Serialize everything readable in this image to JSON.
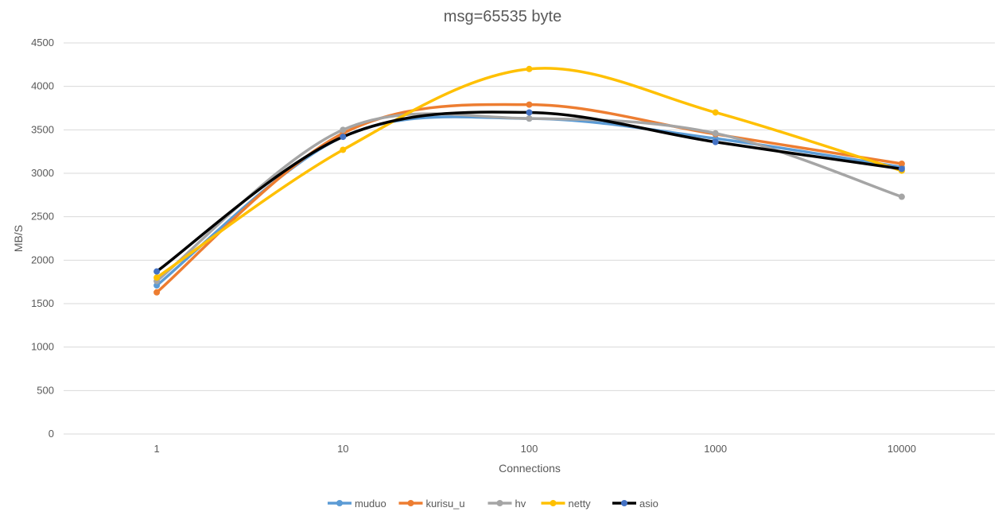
{
  "chart_data": {
    "type": "line",
    "title": "msg=65535 byte",
    "xlabel": "Connections",
    "ylabel": "MB/S",
    "categories": [
      "1",
      "10",
      "100",
      "1000",
      "10000"
    ],
    "ylim": [
      0,
      4500
    ],
    "yticks": [
      0,
      500,
      1000,
      1500,
      2000,
      2500,
      3000,
      3500,
      4000,
      4500
    ],
    "grid": true,
    "legend_position": "bottom",
    "series": [
      {
        "name": "muduo",
        "color": "#5B9BD5",
        "values": [
          1710,
          3420,
          3630,
          3400,
          3070
        ]
      },
      {
        "name": "kurisu_u",
        "color": "#ED7D31",
        "values": [
          1630,
          3460,
          3790,
          3450,
          3110
        ]
      },
      {
        "name": "hv",
        "color": "#A5A5A5",
        "values": [
          1760,
          3500,
          3630,
          3460,
          2730
        ]
      },
      {
        "name": "netty",
        "color": "#FFC000",
        "values": [
          1800,
          3270,
          4200,
          3700,
          3030
        ]
      },
      {
        "name": "asio",
        "color": "#000000",
        "marker_color": "#4472C4",
        "values": [
          1870,
          3420,
          3700,
          3360,
          3050
        ]
      }
    ],
    "colors": {
      "grid": "#D9D9D9",
      "text": "#595959"
    }
  }
}
